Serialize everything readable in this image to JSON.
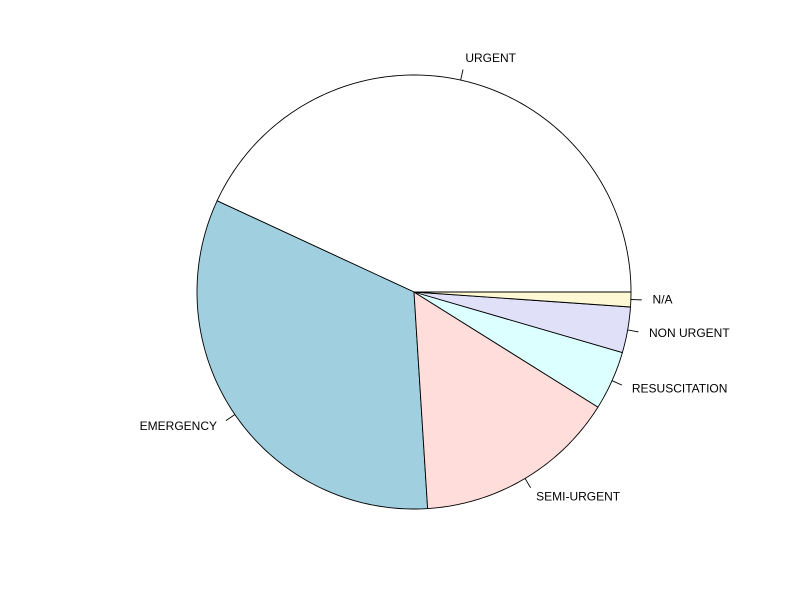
{
  "chart_data": {
    "type": "pie",
    "title": "",
    "direction": "counterclockwise",
    "start": "3 o'clock",
    "slices": [
      {
        "label": "URGENT",
        "value": 0.431,
        "color": "#ffffff"
      },
      {
        "label": "EMERGENCY",
        "value": 0.329,
        "color": "#a0cfe0"
      },
      {
        "label": "SEMI-URGENT",
        "value": 0.151,
        "color": "#ffdddb"
      },
      {
        "label": "RESUSCITATION",
        "value": 0.044,
        "color": "#dcffff"
      },
      {
        "label": "NON URGENT",
        "value": 0.034,
        "color": "#e0e0f9"
      },
      {
        "label": "N/A",
        "value": 0.011,
        "color": "#fff8d4"
      }
    ]
  }
}
